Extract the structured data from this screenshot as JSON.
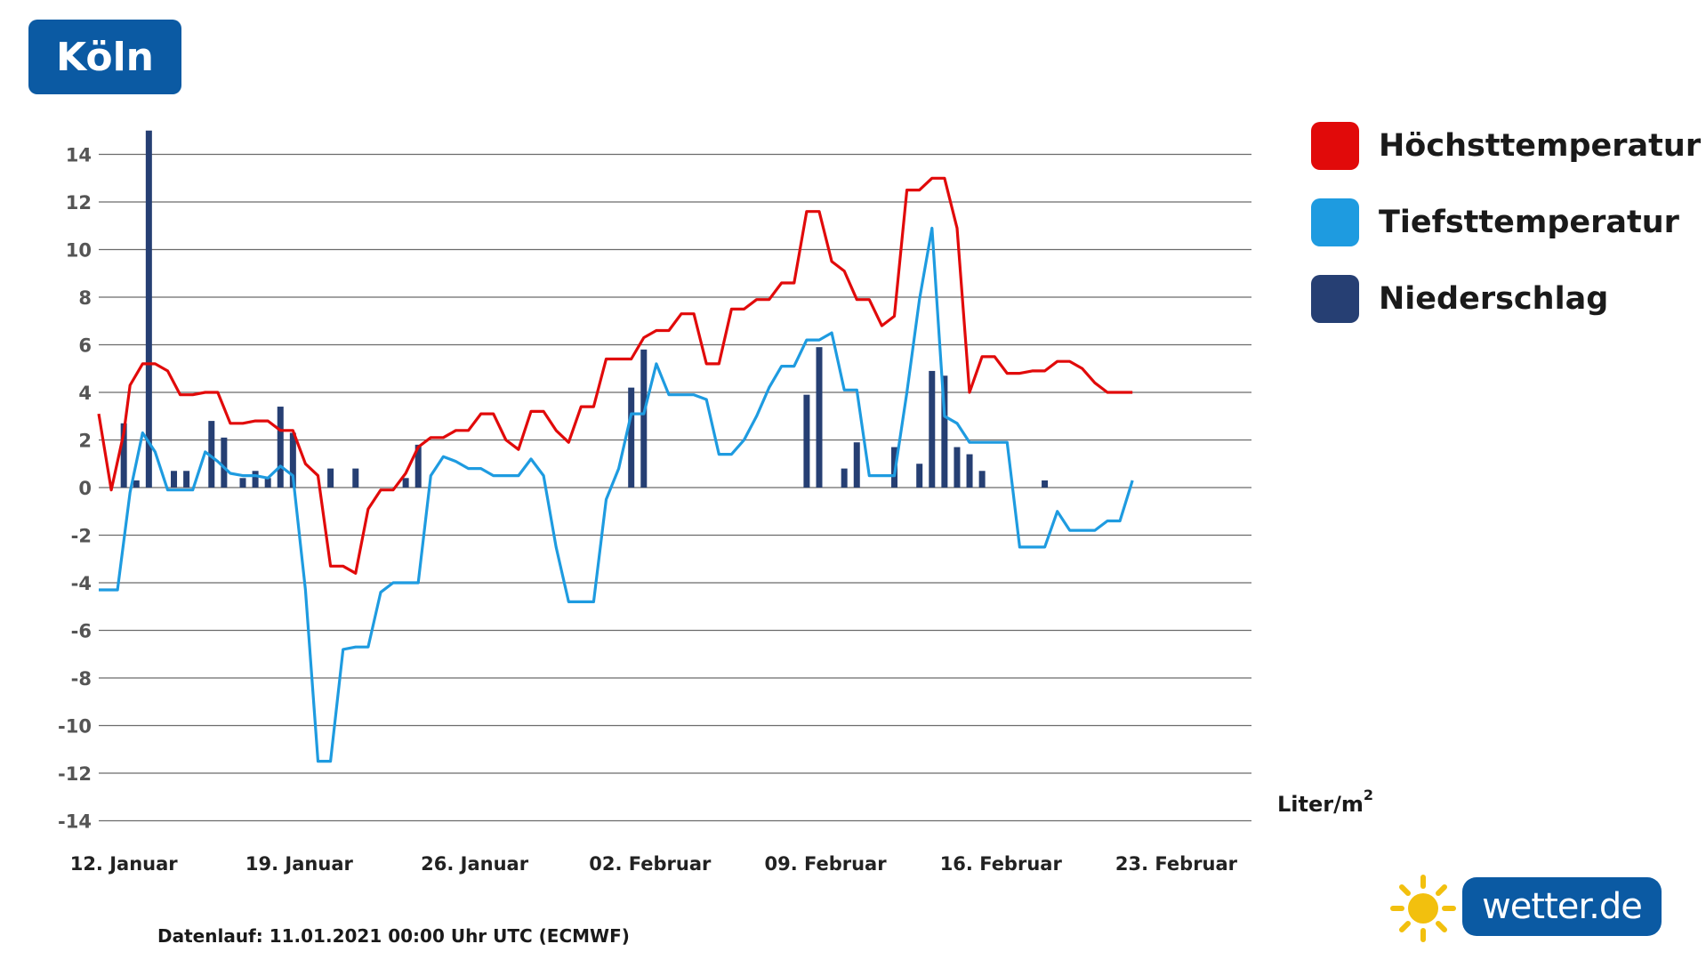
{
  "city": "Köln",
  "legend": {
    "high_label": "Höchsttemperatur",
    "low_label": "Tiefsttemperatur",
    "precip_label": "Niederschlag"
  },
  "unit": {
    "base": "Liter/m",
    "exp": "2"
  },
  "footnote": "Datenlauf: 11.01.2021 00:00 Uhr UTC (ECMWF)",
  "logo": {
    "text": "wetter.de"
  },
  "colors": {
    "high": "#e10a0a",
    "low": "#1e9be0",
    "precip": "#263f73",
    "badge": "#0b5aa3",
    "grid": "#6b6b6b"
  },
  "chart_data": {
    "type": "line",
    "title": "Köln",
    "ylim": [
      -14,
      15
    ],
    "yticks": [
      14,
      12,
      10,
      8,
      6,
      4,
      2,
      0,
      -2,
      -4,
      -6,
      -8,
      -10,
      -12,
      -14
    ],
    "ytick_labels": [
      "14",
      "12",
      "10",
      "8",
      "6",
      "4",
      "2",
      "0",
      "-2",
      "-4",
      "-6",
      "-8",
      "-10",
      "-12",
      "-14"
    ],
    "x_start": "2021-01-11",
    "x_end": "2021-02-26",
    "x_tick_dates": [
      "2021-01-12",
      "2021-01-19",
      "2021-01-26",
      "2021-02-02",
      "2021-02-09",
      "2021-02-16",
      "2021-02-23"
    ],
    "x_tick_labels": [
      "12. Januar",
      "19. Januar",
      "26. Januar",
      "02. Februar",
      "09. Februar",
      "16. Februar",
      "23. Februar"
    ],
    "grid": true,
    "legend_position": "right",
    "series": [
      {
        "name": "Höchsttemperatur",
        "kind": "line",
        "color": "#e10a0a",
        "points": [
          [
            "2021-01-11 00:00",
            3.1
          ],
          [
            "2021-01-11 12:00",
            -0.1
          ],
          [
            "2021-01-12 00:00",
            2.3
          ],
          [
            "2021-01-12 06:00",
            4.3
          ],
          [
            "2021-01-12 18:00",
            5.2
          ],
          [
            "2021-01-13 06:00",
            5.2
          ],
          [
            "2021-01-13 18:00",
            4.9
          ],
          [
            "2021-01-14 06:00",
            3.9
          ],
          [
            "2021-01-14 18:00",
            3.9
          ],
          [
            "2021-01-15 06:00",
            4.0
          ],
          [
            "2021-01-15 18:00",
            4.0
          ],
          [
            "2021-01-16 06:00",
            2.7
          ],
          [
            "2021-01-16 18:00",
            2.7
          ],
          [
            "2021-01-17 06:00",
            2.8
          ],
          [
            "2021-01-17 18:00",
            2.8
          ],
          [
            "2021-01-18 06:00",
            2.4
          ],
          [
            "2021-01-18 18:00",
            2.4
          ],
          [
            "2021-01-19 06:00",
            1.0
          ],
          [
            "2021-01-19 18:00",
            0.5
          ],
          [
            "2021-01-20 06:00",
            -3.3
          ],
          [
            "2021-01-20 18:00",
            -3.3
          ],
          [
            "2021-01-21 06:00",
            -3.6
          ],
          [
            "2021-01-21 18:00",
            -0.9
          ],
          [
            "2021-01-22 06:00",
            -0.1
          ],
          [
            "2021-01-22 18:00",
            -0.1
          ],
          [
            "2021-01-23 06:00",
            0.6
          ],
          [
            "2021-01-23 18:00",
            1.7
          ],
          [
            "2021-01-24 06:00",
            2.1
          ],
          [
            "2021-01-24 18:00",
            2.1
          ],
          [
            "2021-01-25 06:00",
            2.4
          ],
          [
            "2021-01-25 18:00",
            2.4
          ],
          [
            "2021-01-26 06:00",
            3.1
          ],
          [
            "2021-01-26 18:00",
            3.1
          ],
          [
            "2021-01-27 06:00",
            2.0
          ],
          [
            "2021-01-27 18:00",
            1.6
          ],
          [
            "2021-01-28 06:00",
            3.2
          ],
          [
            "2021-01-28 18:00",
            3.2
          ],
          [
            "2021-01-29 06:00",
            2.4
          ],
          [
            "2021-01-29 18:00",
            1.9
          ],
          [
            "2021-01-30 06:00",
            3.4
          ],
          [
            "2021-01-30 18:00",
            3.4
          ],
          [
            "2021-01-31 06:00",
            5.4
          ],
          [
            "2021-01-31 18:00",
            5.4
          ],
          [
            "2021-02-01 06:00",
            5.4
          ],
          [
            "2021-02-01 18:00",
            6.3
          ],
          [
            "2021-02-02 06:00",
            6.6
          ],
          [
            "2021-02-02 18:00",
            6.6
          ],
          [
            "2021-02-03 06:00",
            7.3
          ],
          [
            "2021-02-03 18:00",
            7.3
          ],
          [
            "2021-02-04 06:00",
            5.2
          ],
          [
            "2021-02-04 18:00",
            5.2
          ],
          [
            "2021-02-05 06:00",
            7.5
          ],
          [
            "2021-02-05 18:00",
            7.5
          ],
          [
            "2021-02-06 06:00",
            7.9
          ],
          [
            "2021-02-06 18:00",
            7.9
          ],
          [
            "2021-02-07 06:00",
            8.6
          ],
          [
            "2021-02-07 18:00",
            8.6
          ],
          [
            "2021-02-08 06:00",
            11.6
          ],
          [
            "2021-02-08 18:00",
            11.6
          ],
          [
            "2021-02-09 06:00",
            9.5
          ],
          [
            "2021-02-09 18:00",
            9.1
          ],
          [
            "2021-02-10 06:00",
            7.9
          ],
          [
            "2021-02-10 18:00",
            7.9
          ],
          [
            "2021-02-11 06:00",
            6.8
          ],
          [
            "2021-02-11 18:00",
            7.2
          ],
          [
            "2021-02-12 06:00",
            12.5
          ],
          [
            "2021-02-12 18:00",
            12.5
          ],
          [
            "2021-02-13 06:00",
            13.0
          ],
          [
            "2021-02-13 18:00",
            13.0
          ],
          [
            "2021-02-14 06:00",
            10.9
          ],
          [
            "2021-02-14 18:00",
            4.0
          ],
          [
            "2021-02-15 06:00",
            5.5
          ],
          [
            "2021-02-15 18:00",
            5.5
          ],
          [
            "2021-02-16 06:00",
            4.8
          ],
          [
            "2021-02-16 18:00",
            4.8
          ],
          [
            "2021-02-17 06:00",
            4.9
          ],
          [
            "2021-02-17 18:00",
            4.9
          ],
          [
            "2021-02-18 06:00",
            5.3
          ],
          [
            "2021-02-18 18:00",
            5.3
          ],
          [
            "2021-02-19 06:00",
            5.0
          ],
          [
            "2021-02-19 18:00",
            4.4
          ],
          [
            "2021-02-20 06:00",
            4.0
          ],
          [
            "2021-02-20 18:00",
            4.0
          ],
          [
            "2021-02-21 06:00",
            4.0
          ]
        ]
      },
      {
        "name": "Tiefsttemperatur",
        "kind": "line",
        "color": "#1e9be0",
        "points": [
          [
            "2021-01-11 00:00",
            -4.3
          ],
          [
            "2021-01-11 18:00",
            -4.3
          ],
          [
            "2021-01-12 06:00",
            -0.2
          ],
          [
            "2021-01-12 18:00",
            2.3
          ],
          [
            "2021-01-13 06:00",
            1.5
          ],
          [
            "2021-01-13 18:00",
            -0.1
          ],
          [
            "2021-01-14 06:00",
            -0.1
          ],
          [
            "2021-01-14 18:00",
            -0.1
          ],
          [
            "2021-01-15 06:00",
            1.5
          ],
          [
            "2021-01-15 18:00",
            1.1
          ],
          [
            "2021-01-16 06:00",
            0.6
          ],
          [
            "2021-01-16 18:00",
            0.5
          ],
          [
            "2021-01-17 06:00",
            0.5
          ],
          [
            "2021-01-17 18:00",
            0.4
          ],
          [
            "2021-01-18 06:00",
            0.9
          ],
          [
            "2021-01-18 18:00",
            0.5
          ],
          [
            "2021-01-19 06:00",
            -4.3
          ],
          [
            "2021-01-19 18:00",
            -11.5
          ],
          [
            "2021-01-20 06:00",
            -11.5
          ],
          [
            "2021-01-20 18:00",
            -6.8
          ],
          [
            "2021-01-21 06:00",
            -6.7
          ],
          [
            "2021-01-21 18:00",
            -6.7
          ],
          [
            "2021-01-22 06:00",
            -4.4
          ],
          [
            "2021-01-22 18:00",
            -4.0
          ],
          [
            "2021-01-23 06:00",
            -4.0
          ],
          [
            "2021-01-23 18:00",
            -4.0
          ],
          [
            "2021-01-24 06:00",
            0.5
          ],
          [
            "2021-01-24 18:00",
            1.3
          ],
          [
            "2021-01-25 06:00",
            1.1
          ],
          [
            "2021-01-25 18:00",
            0.8
          ],
          [
            "2021-01-26 06:00",
            0.8
          ],
          [
            "2021-01-26 18:00",
            0.5
          ],
          [
            "2021-01-27 06:00",
            0.5
          ],
          [
            "2021-01-27 18:00",
            0.5
          ],
          [
            "2021-01-28 06:00",
            1.2
          ],
          [
            "2021-01-28 18:00",
            0.5
          ],
          [
            "2021-01-29 06:00",
            -2.5
          ],
          [
            "2021-01-29 18:00",
            -4.8
          ],
          [
            "2021-01-30 06:00",
            -4.8
          ],
          [
            "2021-01-30 18:00",
            -4.8
          ],
          [
            "2021-01-31 06:00",
            -0.5
          ],
          [
            "2021-01-31 18:00",
            0.8
          ],
          [
            "2021-02-01 06:00",
            3.1
          ],
          [
            "2021-02-01 18:00",
            3.1
          ],
          [
            "2021-02-02 06:00",
            5.2
          ],
          [
            "2021-02-02 18:00",
            3.9
          ],
          [
            "2021-02-03 06:00",
            3.9
          ],
          [
            "2021-02-03 18:00",
            3.9
          ],
          [
            "2021-02-04 06:00",
            3.7
          ],
          [
            "2021-02-04 18:00",
            1.4
          ],
          [
            "2021-02-05 06:00",
            1.4
          ],
          [
            "2021-02-05 18:00",
            2.0
          ],
          [
            "2021-02-06 06:00",
            3.0
          ],
          [
            "2021-02-06 18:00",
            4.2
          ],
          [
            "2021-02-07 06:00",
            5.1
          ],
          [
            "2021-02-07 18:00",
            5.1
          ],
          [
            "2021-02-08 06:00",
            6.2
          ],
          [
            "2021-02-08 18:00",
            6.2
          ],
          [
            "2021-02-09 06:00",
            6.5
          ],
          [
            "2021-02-09 18:00",
            4.1
          ],
          [
            "2021-02-10 06:00",
            4.1
          ],
          [
            "2021-02-10 18:00",
            0.5
          ],
          [
            "2021-02-11 06:00",
            0.5
          ],
          [
            "2021-02-11 18:00",
            0.5
          ],
          [
            "2021-02-12 06:00",
            4.0
          ],
          [
            "2021-02-12 18:00",
            7.9
          ],
          [
            "2021-02-13 06:00",
            10.9
          ],
          [
            "2021-02-13 18:00",
            3.0
          ],
          [
            "2021-02-14 06:00",
            2.7
          ],
          [
            "2021-02-14 18:00",
            1.9
          ],
          [
            "2021-02-15 06:00",
            1.9
          ],
          [
            "2021-02-15 18:00",
            1.9
          ],
          [
            "2021-02-16 06:00",
            1.9
          ],
          [
            "2021-02-16 18:00",
            -2.5
          ],
          [
            "2021-02-17 06:00",
            -2.5
          ],
          [
            "2021-02-17 18:00",
            -2.5
          ],
          [
            "2021-02-18 06:00",
            -1.0
          ],
          [
            "2021-02-18 18:00",
            -1.8
          ],
          [
            "2021-02-19 06:00",
            -1.8
          ],
          [
            "2021-02-19 18:00",
            -1.8
          ],
          [
            "2021-02-20 06:00",
            -1.4
          ],
          [
            "2021-02-20 18:00",
            -1.4
          ],
          [
            "2021-02-21 06:00",
            0.3
          ]
        ]
      },
      {
        "name": "Niederschlag",
        "kind": "bar",
        "color": "#263f73",
        "points": [
          [
            "2021-01-12 00:00",
            2.7
          ],
          [
            "2021-01-12 12:00",
            0.3
          ],
          [
            "2021-01-13 00:00",
            15.0
          ],
          [
            "2021-01-14 00:00",
            0.7
          ],
          [
            "2021-01-14 12:00",
            0.7
          ],
          [
            "2021-01-15 12:00",
            2.8
          ],
          [
            "2021-01-16 00:00",
            2.1
          ],
          [
            "2021-01-16 18:00",
            0.4
          ],
          [
            "2021-01-17 06:00",
            0.7
          ],
          [
            "2021-01-17 18:00",
            0.4
          ],
          [
            "2021-01-18 06:00",
            3.4
          ],
          [
            "2021-01-18 18:00",
            2.3
          ],
          [
            "2021-01-20 06:00",
            0.8
          ],
          [
            "2021-01-21 06:00",
            0.8
          ],
          [
            "2021-01-23 06:00",
            0.4
          ],
          [
            "2021-01-23 18:00",
            1.8
          ],
          [
            "2021-02-01 06:00",
            4.2
          ],
          [
            "2021-02-01 18:00",
            5.8
          ],
          [
            "2021-02-08 06:00",
            3.9
          ],
          [
            "2021-02-08 18:00",
            5.9
          ],
          [
            "2021-02-09 18:00",
            0.8
          ],
          [
            "2021-02-10 06:00",
            1.9
          ],
          [
            "2021-02-11 18:00",
            1.7
          ],
          [
            "2021-02-12 18:00",
            1.0
          ],
          [
            "2021-02-13 06:00",
            4.9
          ],
          [
            "2021-02-13 18:00",
            4.7
          ],
          [
            "2021-02-14 06:00",
            1.7
          ],
          [
            "2021-02-14 18:00",
            1.4
          ],
          [
            "2021-02-15 06:00",
            0.7
          ],
          [
            "2021-02-17 18:00",
            0.3
          ]
        ]
      }
    ]
  }
}
